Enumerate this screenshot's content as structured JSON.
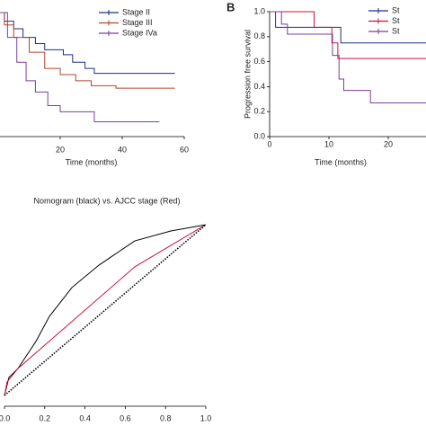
{
  "chart_data": [
    {
      "type": "line",
      "step": true,
      "x_label": "Time (months)",
      "xlim": [
        0,
        60
      ],
      "ylim": [
        0,
        1
      ],
      "xticks": [
        20,
        40,
        60
      ],
      "legend": "upper right",
      "series": [
        {
          "name": "Stage II",
          "color": "#1f2d8a",
          "x": [
            0,
            2,
            5,
            8,
            12,
            15,
            21,
            24,
            28,
            31,
            57
          ],
          "values": [
            1.0,
            0.93,
            0.87,
            0.8,
            0.75,
            0.7,
            0.66,
            0.6,
            0.55,
            0.51,
            0.51
          ]
        },
        {
          "name": "Stage III",
          "color": "#b5452a",
          "x": [
            0,
            2,
            5,
            10,
            15,
            20,
            25,
            30,
            38,
            57
          ],
          "values": [
            1.0,
            0.9,
            0.8,
            0.68,
            0.55,
            0.5,
            0.45,
            0.41,
            0.39,
            0.39
          ]
        },
        {
          "name": "Stage IVa",
          "color": "#7b3f9e",
          "x": [
            0,
            3,
            6,
            9,
            12,
            16,
            20,
            31,
            52
          ],
          "values": [
            1.0,
            0.8,
            0.6,
            0.45,
            0.36,
            0.25,
            0.2,
            0.12,
            0.12
          ]
        }
      ]
    },
    {
      "type": "line",
      "step": true,
      "panel_label": "B",
      "y_label": "Progression free survival",
      "x_label": "Time (months)",
      "xlim": [
        0,
        30
      ],
      "ylim": [
        0,
        1
      ],
      "xticks": [
        0,
        10,
        20
      ],
      "yticks": [
        {
          "value": 0,
          "label": "0.0"
        },
        0.2,
        0.4,
        0.6,
        0.8,
        {
          "value": 1,
          "label": "1.0"
        }
      ],
      "legend": "upper right",
      "series": [
        {
          "name": "St",
          "color": "#1f2d8a",
          "x": [
            0,
            1,
            12,
            30
          ],
          "values": [
            1.0,
            0.875,
            0.75,
            0.75
          ]
        },
        {
          "name": "St",
          "color": "#d0103a",
          "x": [
            0,
            7.5,
            10.5,
            11.5,
            30
          ],
          "values": [
            1.0,
            0.875,
            0.75,
            0.625,
            0.625
          ]
        },
        {
          "name": "St",
          "color": "#7b3f9e",
          "x": [
            0,
            2,
            3,
            10.6,
            11.7,
            12.5,
            17,
            30
          ],
          "values": [
            1.0,
            0.9,
            0.82,
            0.65,
            0.46,
            0.37,
            0.27,
            0.27
          ]
        }
      ]
    },
    {
      "type": "line",
      "title": "Nomogram (black) vs. AJCC stage (Red)",
      "xlim": [
        0,
        1
      ],
      "ylim": [
        0,
        1
      ],
      "xticks": [
        {
          "value": 0,
          "label": "0.0"
        },
        0.2,
        0.4,
        0.6,
        0.8,
        {
          "value": 1,
          "label": "1.0"
        }
      ],
      "series": [
        {
          "color": "#000000",
          "x": [
            0,
            0.022,
            0.067,
            0.156,
            0.223,
            0.335,
            0.469,
            0.647,
            0.826,
            1
          ],
          "values": [
            0,
            0.105,
            0.158,
            0.316,
            0.463,
            0.632,
            0.763,
            0.905,
            0.963,
            1
          ]
        },
        {
          "color": "#d0103a",
          "x": [
            0,
            0.013,
            0.067,
            0.647,
            1
          ],
          "values": [
            0,
            0.079,
            0.158,
            0.753,
            1
          ]
        },
        {
          "color": "#000000",
          "dash": "dotted",
          "x": [
            0,
            1
          ],
          "values": [
            0,
            1
          ]
        }
      ]
    }
  ]
}
